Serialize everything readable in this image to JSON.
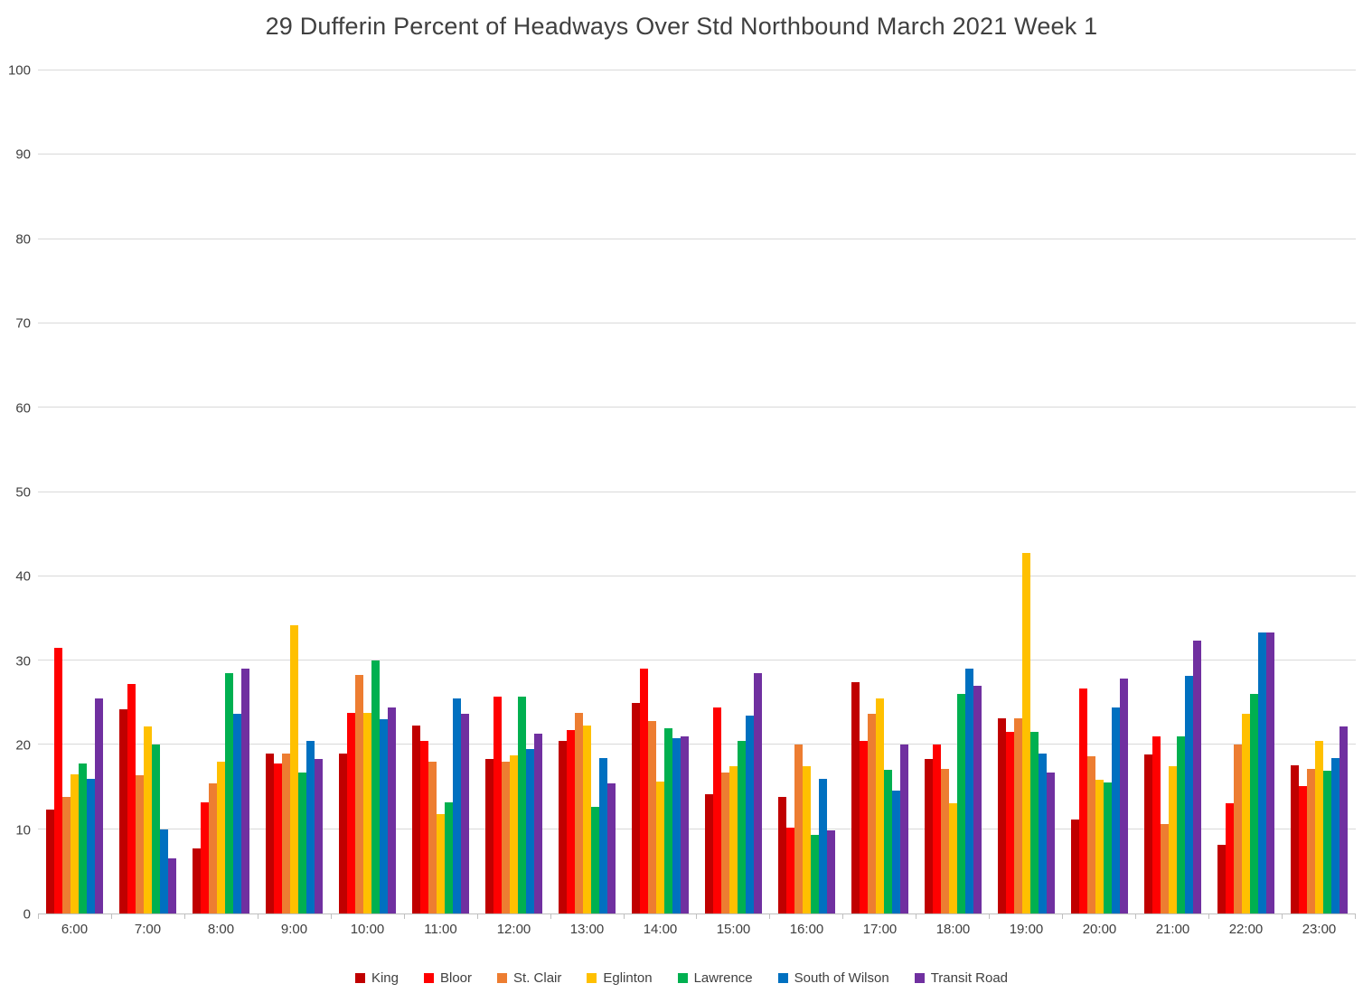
{
  "chart_data": {
    "type": "bar",
    "title": "29 Dufferin  Percent of Headways Over Std Northbound March 2021 Week 1",
    "xlabel": "",
    "ylabel": "",
    "ylim": [
      0,
      100
    ],
    "ytick_step": 10,
    "grid": true,
    "legend_position": "bottom",
    "categories": [
      "6:00",
      "7:00",
      "8:00",
      "9:00",
      "10:00",
      "11:00",
      "12:00",
      "13:00",
      "14:00",
      "15:00",
      "16:00",
      "17:00",
      "18:00",
      "19:00",
      "20:00",
      "21:00",
      "22:00",
      "23:00"
    ],
    "series": [
      {
        "name": "King",
        "color": "#C00000",
        "values": [
          12.3,
          24.2,
          7.7,
          19.0,
          19.0,
          22.3,
          18.3,
          20.5,
          25.0,
          14.2,
          13.8,
          27.4,
          18.3,
          23.2,
          11.2,
          18.9,
          8.1,
          17.6
        ]
      },
      {
        "name": "Bloor",
        "color": "#FF0000",
        "values": [
          31.5,
          27.2,
          13.2,
          17.8,
          23.8,
          20.5,
          25.7,
          21.8,
          29.0,
          24.4,
          10.2,
          20.5,
          20.0,
          21.5,
          26.7,
          21.0,
          13.1,
          15.1
        ]
      },
      {
        "name": "St. Clair",
        "color": "#ED7D31",
        "values": [
          13.8,
          16.4,
          15.4,
          19.0,
          28.3,
          18.0,
          18.0,
          23.8,
          22.8,
          16.7,
          20.0,
          23.7,
          17.1,
          23.1,
          18.7,
          10.6,
          20.0,
          17.2
        ]
      },
      {
        "name": "Eglinton",
        "color": "#FFC000",
        "values": [
          16.5,
          22.2,
          18.0,
          34.2,
          23.8,
          11.8,
          18.8,
          22.3,
          15.7,
          17.5,
          17.5,
          25.5,
          13.1,
          42.8,
          15.9,
          17.5,
          23.7,
          20.5
        ]
      },
      {
        "name": "Lawrence",
        "color": "#00B050",
        "values": [
          17.8,
          20.0,
          28.5,
          16.7,
          30.0,
          13.2,
          25.7,
          12.7,
          22.0,
          20.5,
          9.3,
          17.0,
          26.1,
          21.5,
          15.5,
          21.0,
          26.1,
          16.9
        ]
      },
      {
        "name": "South of Wilson",
        "color": "#0070C0",
        "values": [
          16.0,
          10.0,
          23.7,
          20.5,
          23.0,
          25.5,
          19.5,
          18.4,
          20.8,
          23.5,
          16.0,
          14.6,
          29.0,
          19.0,
          24.4,
          28.2,
          33.3,
          18.4
        ]
      },
      {
        "name": "Transit Road",
        "color": "#7030A0",
        "values": [
          25.5,
          6.5,
          29.0,
          18.3,
          24.4,
          23.7,
          21.3,
          15.4,
          21.0,
          28.5,
          9.9,
          20.0,
          27.0,
          16.7,
          27.9,
          32.4,
          33.3,
          22.2
        ]
      }
    ]
  }
}
